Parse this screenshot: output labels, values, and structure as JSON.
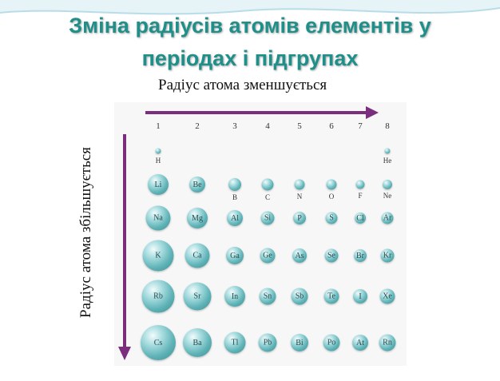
{
  "slide": {
    "title_line1": "Зміна радіусів атомів елементів у",
    "title_line2": "періодах і підгрупах",
    "horizontal_label": "Радіус атома зменшується",
    "vertical_label": "Радіус атома збільшується"
  },
  "columns": [
    "1",
    "2",
    "3",
    "4",
    "5",
    "6",
    "7",
    "8"
  ],
  "rows": [
    {
      "atoms": [
        {
          "symbol": "H",
          "col": 1,
          "label_position": "below"
        },
        {
          "symbol": "He",
          "col": 8,
          "label_position": "below"
        }
      ]
    },
    {
      "atoms": [
        {
          "symbol": "Li",
          "col": 1,
          "label_position": "inside"
        },
        {
          "symbol": "Be",
          "col": 2,
          "label_position": "inside"
        },
        {
          "symbol": "B",
          "col": 3,
          "label_position": "below"
        },
        {
          "symbol": "C",
          "col": 4,
          "label_position": "below"
        },
        {
          "symbol": "N",
          "col": 5,
          "label_position": "below"
        },
        {
          "symbol": "O",
          "col": 6,
          "label_position": "below"
        },
        {
          "symbol": "F",
          "col": 7,
          "label_position": "below"
        },
        {
          "symbol": "Ne",
          "col": 8,
          "label_position": "below"
        }
      ]
    },
    {
      "atoms": [
        {
          "symbol": "Na",
          "col": 1,
          "label_position": "inside"
        },
        {
          "symbol": "Mg",
          "col": 2,
          "label_position": "inside"
        },
        {
          "symbol": "Al",
          "col": 3,
          "label_position": "inside"
        },
        {
          "symbol": "Si",
          "col": 4,
          "label_position": "inside"
        },
        {
          "symbol": "P",
          "col": 5,
          "label_position": "inside"
        },
        {
          "symbol": "S",
          "col": 6,
          "label_position": "inside"
        },
        {
          "symbol": "Cl",
          "col": 7,
          "label_position": "inside"
        },
        {
          "symbol": "Ar",
          "col": 8,
          "label_position": "inside"
        }
      ]
    },
    {
      "atoms": [
        {
          "symbol": "K",
          "col": 1,
          "label_position": "inside"
        },
        {
          "symbol": "Ca",
          "col": 2,
          "label_position": "inside"
        },
        {
          "symbol": "Ga",
          "col": 3,
          "label_position": "inside"
        },
        {
          "symbol": "Ge",
          "col": 4,
          "label_position": "inside"
        },
        {
          "symbol": "As",
          "col": 5,
          "label_position": "inside"
        },
        {
          "symbol": "Se",
          "col": 6,
          "label_position": "inside"
        },
        {
          "symbol": "Br",
          "col": 7,
          "label_position": "inside"
        },
        {
          "symbol": "Kr",
          "col": 8,
          "label_position": "inside"
        }
      ]
    },
    {
      "atoms": [
        {
          "symbol": "Rb",
          "col": 1,
          "label_position": "inside"
        },
        {
          "symbol": "Sr",
          "col": 2,
          "label_position": "inside"
        },
        {
          "symbol": "In",
          "col": 3,
          "label_position": "inside"
        },
        {
          "symbol": "Sn",
          "col": 4,
          "label_position": "inside"
        },
        {
          "symbol": "Sb",
          "col": 5,
          "label_position": "inside"
        },
        {
          "symbol": "Te",
          "col": 6,
          "label_position": "inside"
        },
        {
          "symbol": "I",
          "col": 7,
          "label_position": "inside"
        },
        {
          "symbol": "Xe",
          "col": 8,
          "label_position": "inside"
        }
      ]
    },
    {
      "atoms": [
        {
          "symbol": "Cs",
          "col": 1,
          "label_position": "inside"
        },
        {
          "symbol": "Ba",
          "col": 2,
          "label_position": "inside"
        },
        {
          "symbol": "Tl",
          "col": 3,
          "label_position": "inside"
        },
        {
          "symbol": "Pb",
          "col": 4,
          "label_position": "inside"
        },
        {
          "symbol": "Bi",
          "col": 5,
          "label_position": "inside"
        },
        {
          "symbol": "Po",
          "col": 6,
          "label_position": "inside"
        },
        {
          "symbol": "At",
          "col": 7,
          "label_position": "inside"
        },
        {
          "symbol": "Rn",
          "col": 8,
          "label_position": "inside"
        }
      ]
    }
  ],
  "colors": {
    "title": "#1f8f8a",
    "arrow": "#7b2d7e",
    "atom": "#5fb3b7"
  }
}
